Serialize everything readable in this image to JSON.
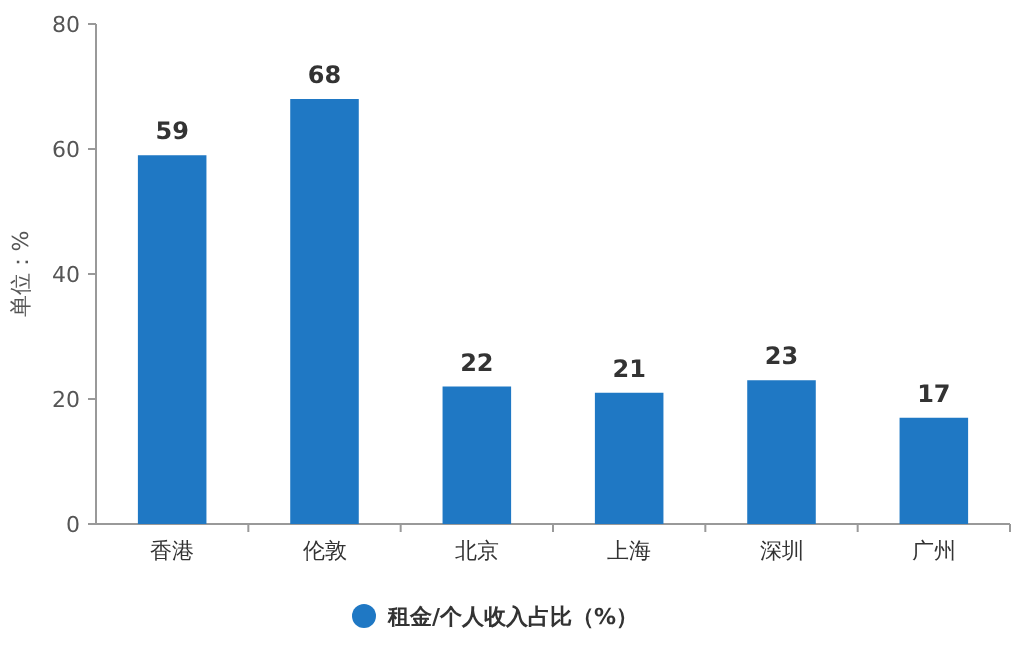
{
  "chart_data": {
    "type": "bar",
    "ylabel": "单位：%",
    "categories": [
      "香港",
      "伦敦",
      "北京",
      "上海",
      "深圳",
      "广州"
    ],
    "series": [
      {
        "name": "租金/个人收入占比（%）",
        "color": "#1f78c4",
        "values": [
          59,
          68,
          22,
          21,
          23,
          17
        ]
      }
    ],
    "ylim": [
      0,
      80
    ],
    "yticks": [
      0,
      20,
      40,
      60,
      80
    ],
    "data_labels": true,
    "legend": "bottom",
    "grid": false
  }
}
